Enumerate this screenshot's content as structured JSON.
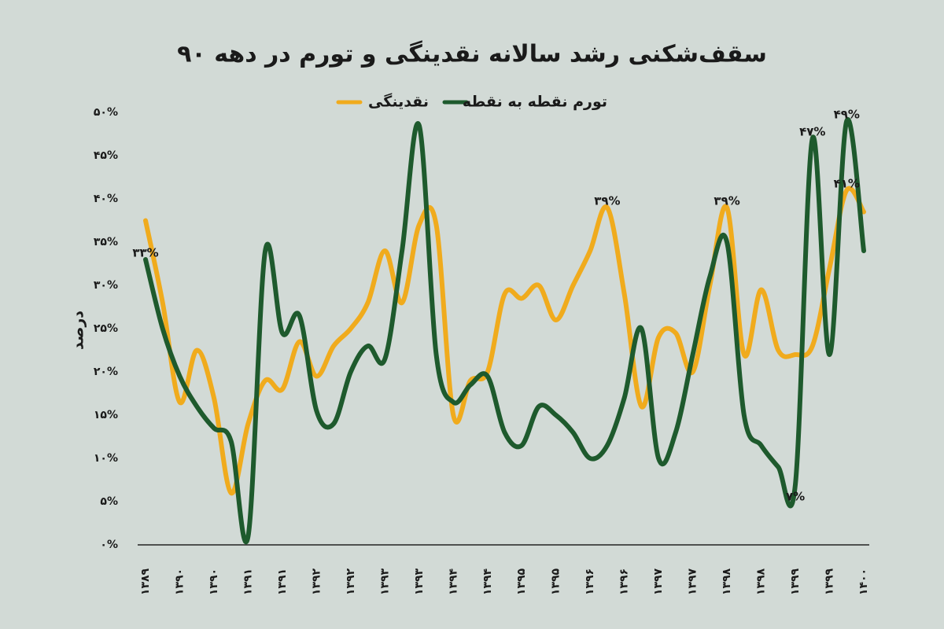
{
  "chart_data": {
    "type": "line",
    "title": "سقف‌شکنی رشد سالانه نقدینگی و تورم در دهه ۹۰",
    "y_label": "درصد",
    "categories": [
      "۱۳۸۹",
      null,
      "۱۳۹۰",
      null,
      "۱۳۹۰",
      null,
      "۱۳۹۱",
      null,
      "۱۳۹۱",
      null,
      "۱۳۹۲",
      null,
      "۱۳۹۲",
      null,
      "۱۳۹۳",
      null,
      "۱۳۹۳",
      null,
      "۱۳۹۴",
      null,
      "۱۳۹۴",
      null,
      "۱۳۹۵",
      null,
      "۱۳۹۵",
      null,
      "۱۳۹۶",
      null,
      "۱۳۹۶",
      null,
      "۱۳۹۷",
      null,
      "۱۳۹۷",
      null,
      "۱۳۹۸",
      null,
      "۱۳۹۸",
      null,
      "۱۳۹۹",
      null,
      "۱۳۹۹",
      null,
      "۱۴۰۰"
    ],
    "series": [
      {
        "name": "نقدینگی",
        "color": "#f0ab1d",
        "values": [
          37.5,
          28,
          16.5,
          22.5,
          17,
          6,
          14,
          19,
          18,
          23.5,
          19.5,
          23,
          25,
          28,
          34,
          28,
          37,
          37,
          15,
          19,
          20,
          29,
          28.5,
          30,
          26,
          30,
          34,
          39,
          29,
          16,
          24,
          24.5,
          20,
          30,
          39,
          22,
          29.5,
          22.5,
          22,
          23,
          32,
          41,
          38.5
        ],
        "value_labels": [
          null,
          null,
          null,
          null,
          null,
          null,
          null,
          null,
          null,
          null,
          null,
          null,
          null,
          null,
          null,
          null,
          null,
          null,
          null,
          null,
          null,
          null,
          null,
          null,
          null,
          null,
          null,
          "۳۹%",
          null,
          null,
          null,
          null,
          null,
          null,
          "۳۹%",
          null,
          null,
          null,
          null,
          null,
          null,
          "۴۱%",
          null
        ]
      },
      {
        "name": "تورم نقطه به نقطه",
        "color": "#1e5a2d",
        "values": [
          33,
          25,
          19.5,
          16,
          13.5,
          12,
          1,
          34,
          24.5,
          26.5,
          15.5,
          14,
          20,
          23,
          21.5,
          34,
          48.5,
          22,
          16.5,
          18.5,
          19.5,
          13,
          11.5,
          16,
          15,
          13,
          10,
          11.5,
          17,
          25,
          10,
          13,
          22,
          31,
          35,
          15,
          11.5,
          9,
          7,
          47,
          22,
          49,
          34
        ],
        "value_labels": [
          "۳۳%",
          null,
          null,
          null,
          null,
          null,
          null,
          null,
          null,
          null,
          null,
          null,
          null,
          null,
          null,
          null,
          null,
          null,
          null,
          null,
          null,
          null,
          null,
          null,
          null,
          null,
          null,
          null,
          null,
          null,
          null,
          null,
          null,
          null,
          null,
          null,
          null,
          null,
          "۷%",
          "۴۷%",
          null,
          "۴۹%",
          null
        ]
      }
    ],
    "ylim": [
      0,
      50
    ],
    "yticks": [
      {
        "value": 0,
        "label": "۰%"
      },
      {
        "value": 5,
        "label": "۵%"
      },
      {
        "value": 10,
        "label": "۱۰%"
      },
      {
        "value": 15,
        "label": "۱۵%"
      },
      {
        "value": 20,
        "label": "۲۰%"
      },
      {
        "value": 25,
        "label": "۲۵%"
      },
      {
        "value": 30,
        "label": "۳۰%"
      },
      {
        "value": 35,
        "label": "۳۵%"
      },
      {
        "value": 40,
        "label": "۴۰%"
      },
      {
        "value": 45,
        "label": "۴۵%"
      },
      {
        "value": 50,
        "label": "۵۰%"
      }
    ],
    "grid": false
  }
}
